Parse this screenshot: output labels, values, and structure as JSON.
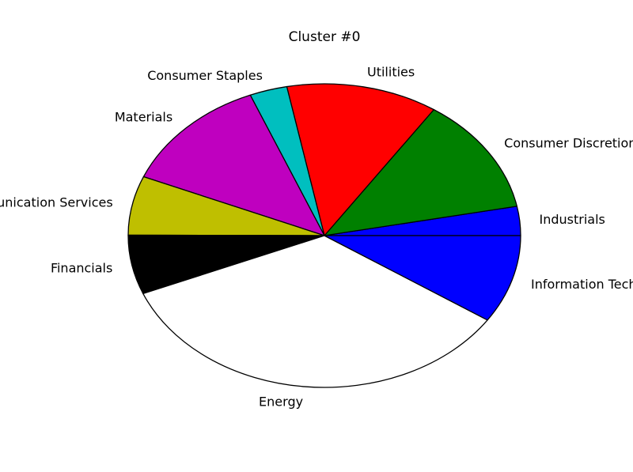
{
  "chart_data": {
    "type": "pie",
    "title": "Cluster #0",
    "start_angle_deg": 0,
    "direction": "counterclockwise",
    "slice_edge_color": "#000000",
    "labels": [
      "Industrials",
      "Consumer Discretionary",
      "Utilities",
      "Consumer Staples",
      "Materials",
      "Communication Services",
      "Financials",
      "Energy",
      "Information Technology"
    ],
    "values": [
      3.1,
      12.5,
      12.5,
      3.1,
      12.5,
      6.3,
      6.3,
      34.4,
      9.4
    ],
    "colors": [
      "#0000ff",
      "#008000",
      "#ff0000",
      "#00bfbf",
      "#bf00bf",
      "#bfbf00",
      "#000000",
      "#ffffff",
      "#0000ff"
    ]
  }
}
